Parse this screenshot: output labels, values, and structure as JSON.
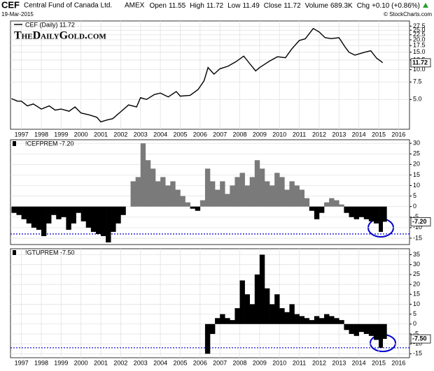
{
  "header": {
    "symbol": "CEF",
    "name": "Central Fund of Canada Ltd.",
    "exchange": "AMEX",
    "date": "19-Mar-2015",
    "quote": [
      {
        "label": "Open",
        "value": "11.55"
      },
      {
        "label": "High",
        "value": "11.72"
      },
      {
        "label": "Low",
        "value": "11.49"
      },
      {
        "label": "Close",
        "value": "11.72"
      },
      {
        "label": "Volume",
        "value": "689.3K"
      },
      {
        "label": "Chg",
        "value": "+0.10 (+0.86%)"
      }
    ],
    "source": "© StockCharts.com"
  },
  "chart_data": [
    {
      "type": "line",
      "annotation": "TheDailyGold.com",
      "log_scale": true,
      "grid": true,
      "xlim": [
        1996.45,
        2016.55
      ],
      "xticks": [
        1997,
        1998,
        1999,
        2000,
        2001,
        2002,
        2003,
        2004,
        2005,
        2006,
        2007,
        2008,
        2009,
        2010,
        2011,
        2012,
        2013,
        2014,
        2015,
        2016
      ],
      "ylim": [
        2.5,
        31
      ],
      "yticks": [
        {
          "value": 5,
          "label": "5.0"
        },
        {
          "value": 7.5,
          "label": "7.5"
        },
        {
          "value": 10,
          "label": "10.0"
        },
        {
          "value": 12.5,
          "label": "12.5"
        },
        {
          "value": 15,
          "label": "15.0"
        },
        {
          "value": 17.5,
          "label": "17.5"
        },
        {
          "value": 20,
          "label": "20.0"
        },
        {
          "value": 22.5,
          "label": "22.5"
        },
        {
          "value": 25,
          "label": "25.0"
        },
        {
          "value": 27.5,
          "label": "27.5"
        }
      ],
      "last": 11.72,
      "x": [
        1996.5,
        1996.8,
        1997,
        1997.3,
        1997.6,
        1998,
        1998.4,
        1998.7,
        1999,
        1999.4,
        1999.7,
        2000,
        2000.4,
        2000.8,
        2001,
        2001.3,
        2001.6,
        2002,
        2002.4,
        2002.8,
        2003,
        2003.3,
        2003.7,
        2004,
        2004.4,
        2004.8,
        2005,
        2005.5,
        2005.9,
        2006.2,
        2006.4,
        2006.7,
        2007,
        2007.4,
        2007.8,
        2008.2,
        2008.5,
        2008.8,
        2009,
        2009.5,
        2009.9,
        2010.3,
        2010.6,
        2011,
        2011.3,
        2011.7,
        2012,
        2012.3,
        2012.6,
        2013,
        2013.3,
        2013.5,
        2013.8,
        2014,
        2014.3,
        2014.6,
        2014.9,
        2015.1,
        2015.2
      ],
      "series": [
        {
          "name": "CEF (Daily) 11.72",
          "color": "#000000",
          "values": [
            5.1,
            4.8,
            4.8,
            4.3,
            4.5,
            4.0,
            4.3,
            3.9,
            4.0,
            3.8,
            4.2,
            3.65,
            3.5,
            3.3,
            2.97,
            3.1,
            3.2,
            3.75,
            4.4,
            4.2,
            5.2,
            5.0,
            5.6,
            5.8,
            5.3,
            6.0,
            5.4,
            5.5,
            6.3,
            7.7,
            10.5,
            9.0,
            10.2,
            10.8,
            12.0,
            13.7,
            11.5,
            9.7,
            10.5,
            12.2,
            13.5,
            13.2,
            16.0,
            19.7,
            20.5,
            26.0,
            24.0,
            21.0,
            20.6,
            21.0,
            17.0,
            15.0,
            14.0,
            14.4,
            15.0,
            15.5,
            13.0,
            12.2,
            11.72
          ]
        }
      ]
    },
    {
      "type": "bar",
      "ylim": [
        -18,
        31.7
      ],
      "yticks": [
        -15,
        -10,
        -5,
        0,
        5,
        10,
        15,
        20,
        25,
        30
      ],
      "grid": true,
      "last": {
        "value": -7.2,
        "label": "-7.20"
      },
      "reference_line": -13,
      "reference_color": "#0000cc",
      "xlim": [
        1996.45,
        2016.55
      ],
      "positive_color": "#7a7a7a",
      "negative_color": "#000000",
      "x": [
        1996.5,
        1996.75,
        1997,
        1997.25,
        1997.5,
        1997.75,
        1998,
        1998.25,
        1998.5,
        1998.75,
        1999,
        1999.25,
        1999.5,
        1999.75,
        2000,
        2000.25,
        2000.5,
        2000.75,
        2001,
        2001.25,
        2001.5,
        2001.75,
        2002,
        2002.25,
        2002.5,
        2002.75,
        2003,
        2003.25,
        2003.5,
        2003.75,
        2004,
        2004.25,
        2004.5,
        2004.75,
        2005,
        2005.25,
        2005.5,
        2005.75,
        2006,
        2006.25,
        2006.5,
        2006.75,
        2007,
        2007.25,
        2007.5,
        2007.75,
        2008,
        2008.25,
        2008.5,
        2008.75,
        2009,
        2009.25,
        2009.5,
        2009.75,
        2010,
        2010.25,
        2010.5,
        2010.75,
        2011,
        2011.25,
        2011.5,
        2011.75,
        2012,
        2012.25,
        2012.5,
        2012.75,
        2013,
        2013.25,
        2013.5,
        2013.75,
        2014,
        2014.25,
        2014.5,
        2014.75,
        2015,
        2015.2
      ],
      "series": [
        {
          "name": "!CEFPREM -7.20",
          "values": [
            -3,
            -4,
            -6,
            -8,
            -10,
            -11,
            -14,
            -8,
            -4,
            -6,
            -5,
            -11,
            -8,
            -3,
            -7,
            -10,
            -12,
            -13,
            -14,
            -17,
            -12,
            -8,
            -4,
            0,
            12,
            14,
            30,
            22,
            18,
            12,
            14,
            10,
            12,
            8,
            5,
            2,
            -1,
            -2,
            3,
            18,
            12,
            8,
            12,
            6,
            10,
            14,
            16,
            10,
            14,
            22,
            18,
            12,
            10,
            16,
            14,
            8,
            12,
            10,
            8,
            4,
            -2,
            -6,
            -3,
            2,
            4,
            3,
            1,
            -3,
            -5,
            -6,
            -5,
            -6,
            -7,
            -8,
            -12,
            -7.2
          ]
        }
      ]
    },
    {
      "type": "bar",
      "ylim": [
        -17,
        38
      ],
      "yticks": [
        -15,
        -10,
        -5,
        0,
        5,
        10,
        15,
        20,
        25,
        30,
        35
      ],
      "grid": true,
      "last": {
        "value": -7.5,
        "label": "-7.50"
      },
      "reference_line": -12,
      "reference_color": "#0000cc",
      "xlim": [
        1996.45,
        2016.55
      ],
      "xticks": [
        1997,
        1998,
        1999,
        2000,
        2001,
        2002,
        2003,
        2004,
        2005,
        2006,
        2007,
        2008,
        2009,
        2010,
        2011,
        2012,
        2013,
        2014,
        2015,
        2016
      ],
      "positive_color": "#000000",
      "negative_color": "#000000",
      "x": [
        2006.25,
        2006.5,
        2006.75,
        2007,
        2007.25,
        2007.5,
        2007.75,
        2008,
        2008.25,
        2008.5,
        2008.75,
        2009,
        2009.25,
        2009.5,
        2009.75,
        2010,
        2010.25,
        2010.5,
        2010.75,
        2011,
        2011.25,
        2011.5,
        2011.75,
        2012,
        2012.25,
        2012.5,
        2012.75,
        2013,
        2013.25,
        2013.5,
        2013.75,
        2014,
        2014.25,
        2014.5,
        2014.75,
        2015,
        2015.2
      ],
      "series": [
        {
          "name": "!GTUPREM -7.50",
          "values": [
            -15,
            -5,
            3,
            5,
            3,
            2,
            8,
            22,
            15,
            10,
            25,
            35,
            18,
            10,
            15,
            8,
            6,
            10,
            5,
            4,
            3,
            2,
            4,
            3,
            5,
            4,
            3,
            2,
            -3,
            -5,
            -6,
            -4,
            -5,
            -6,
            -8,
            -12,
            -7.5
          ]
        }
      ]
    }
  ]
}
